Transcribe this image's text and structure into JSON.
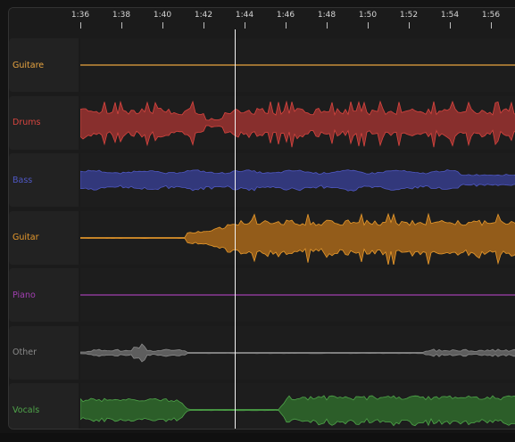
{
  "timeline": {
    "ticks": [
      "1:36",
      "1:38",
      "1:40",
      "1:42",
      "1:44",
      "1:46",
      "1:48",
      "1:50",
      "1:52",
      "1:54",
      "1:56"
    ],
    "playhead_time": "1:43.5"
  },
  "tracks": [
    {
      "id": "guitare",
      "label": "Guitare",
      "color": "#e8a440",
      "fill": "#e8a440",
      "shape": "line"
    },
    {
      "id": "drums",
      "label": "Drums",
      "color": "#d8453f",
      "fill": "#9b3230",
      "shape": "drums"
    },
    {
      "id": "bass",
      "label": "Bass",
      "color": "#4f58c4",
      "fill": "#363d8c",
      "shape": "bass"
    },
    {
      "id": "guitar",
      "label": "Guitar",
      "color": "#e89a2c",
      "fill": "#a8671a",
      "shape": "guitar"
    },
    {
      "id": "piano",
      "label": "Piano",
      "color": "#a13fb0",
      "fill": "#a13fb0",
      "shape": "line"
    },
    {
      "id": "other",
      "label": "Other",
      "color": "#8a8a8a",
      "fill": "#6a6a6a",
      "shape": "other"
    },
    {
      "id": "vocals",
      "label": "Vocals",
      "color": "#4fa54a",
      "fill": "#2f6a2c",
      "shape": "vocals"
    }
  ]
}
